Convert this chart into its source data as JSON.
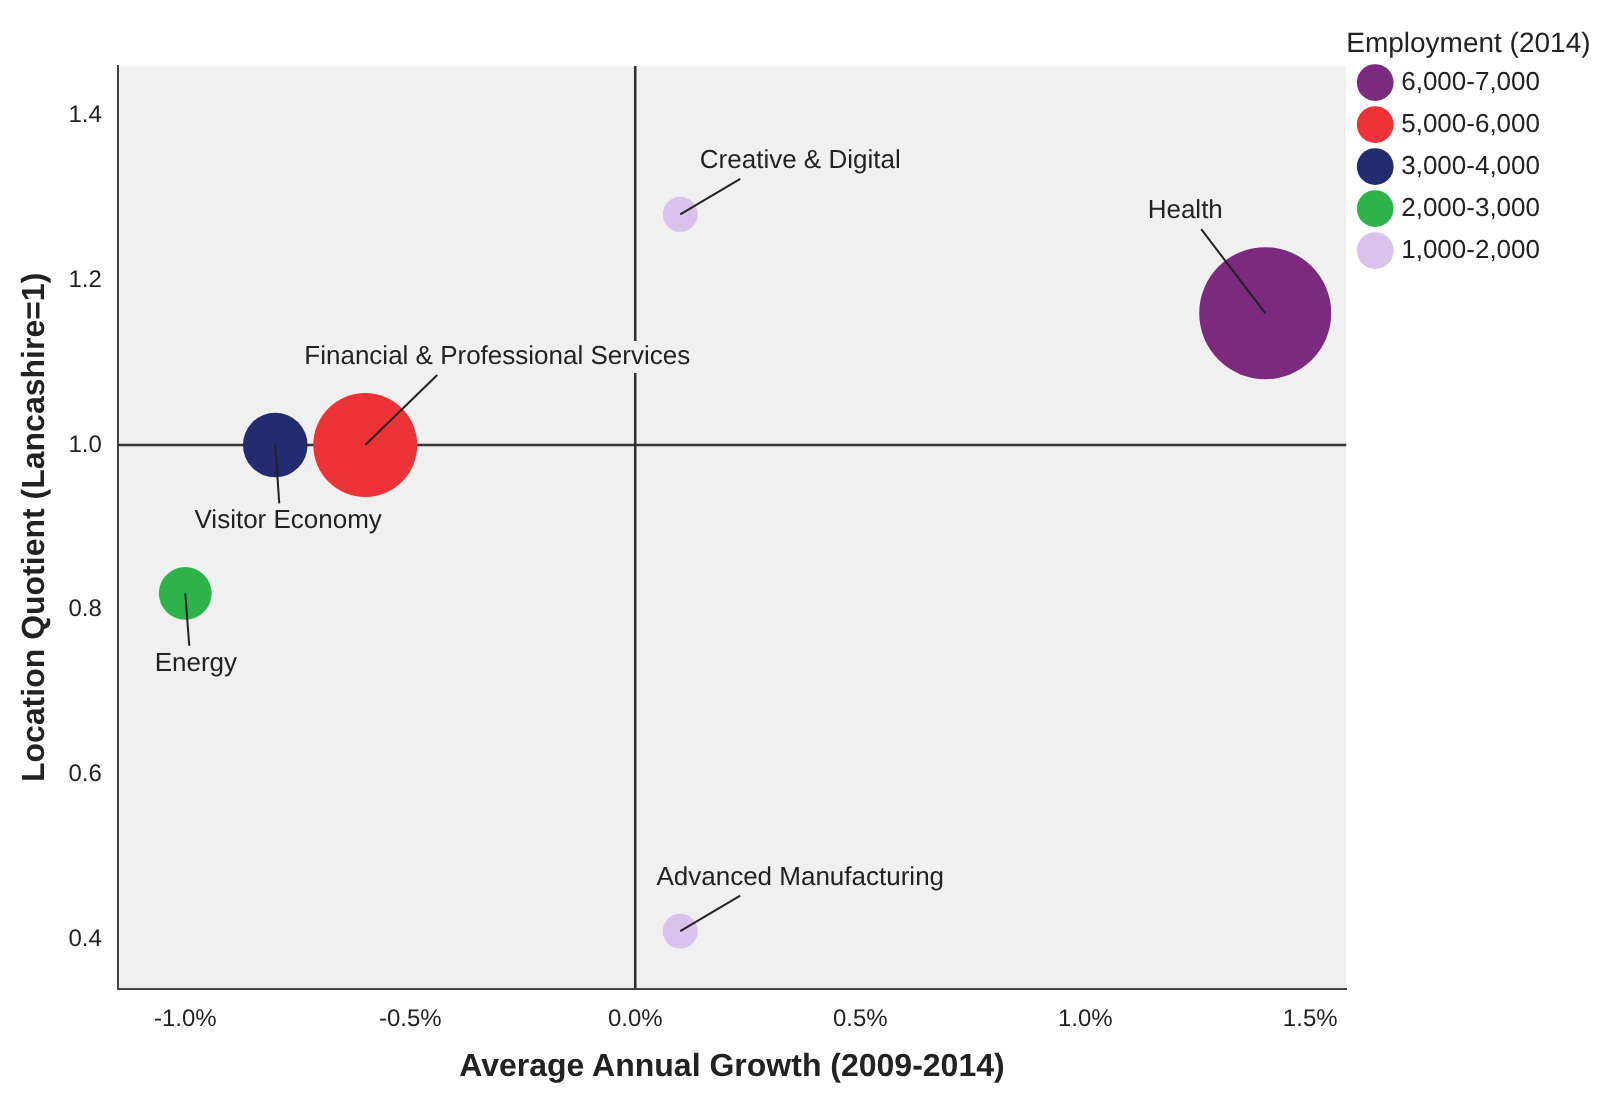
{
  "chart_data": {
    "type": "bubble",
    "xlabel": "Average Annual Growth (2009-2014)",
    "ylabel": "Location Quotient (Lancashire=1)",
    "legend_title": "Employment (2014)",
    "legend": "right",
    "grid": false,
    "xlim": [
      -1.15,
      1.58
    ],
    "xticks": [
      {
        "value": -1.0,
        "label": "-1.0%"
      },
      {
        "value": -0.5,
        "label": "-0.5%"
      },
      {
        "value": 0.0,
        "label": "0.0%"
      },
      {
        "value": 0.5,
        "label": "0.5%"
      },
      {
        "value": 1.0,
        "label": "1.0%"
      },
      {
        "value": 1.5,
        "label": "1.5%"
      }
    ],
    "ylim": [
      0.34,
      1.46
    ],
    "yticks": [
      0.4,
      0.6,
      0.8,
      {
        "value": 1.0,
        "label": "1.0"
      },
      1.2,
      1.4
    ],
    "series": [
      {
        "name": "6,000-7,000",
        "color": "#7b2a7e",
        "x": [
          1.4
        ],
        "values": [
          1.16
        ],
        "sizes": [
          1
        ]
      },
      {
        "name": "5,000-6,000",
        "color": "#ee3338",
        "x": [
          -0.6
        ],
        "values": [
          1.0
        ],
        "sizes": [
          0.62
        ]
      },
      {
        "name": "3,000-4,000",
        "color": "#232c6e",
        "x": [
          -0.8
        ],
        "values": [
          1.0
        ],
        "sizes": [
          0.24
        ]
      },
      {
        "name": "2,000-3,000",
        "color": "#2db34a",
        "x": [
          -1.0
        ],
        "values": [
          0.82
        ],
        "sizes": [
          0.16
        ]
      },
      {
        "name": "1,000-2,000",
        "color": "#d9c3ec",
        "x": [
          0.1,
          0.1
        ],
        "values": [
          1.28,
          0.41
        ],
        "sizes": [
          0.07,
          0.07
        ]
      }
    ],
    "ref_lines": [
      {
        "axis": "x",
        "value": 0,
        "color": "#333333"
      },
      {
        "axis": "y",
        "value": 1.0,
        "color": "#333333"
      }
    ],
    "annotations": [
      {
        "text": "Creative & Digital",
        "x": 0.1,
        "y": 1.28
      },
      {
        "text": "Health",
        "x": 1.4,
        "y": 1.16
      },
      {
        "text": "Financial & Professional Services",
        "x": -0.6,
        "y": 1.0
      },
      {
        "text": "Visitor Economy",
        "x": -0.8,
        "y": 1.0
      },
      {
        "text": "Energy",
        "x": -1.0,
        "y": 0.82
      },
      {
        "text": "Advanced Manufacturing",
        "x": 0.1,
        "y": 0.41
      }
    ]
  }
}
